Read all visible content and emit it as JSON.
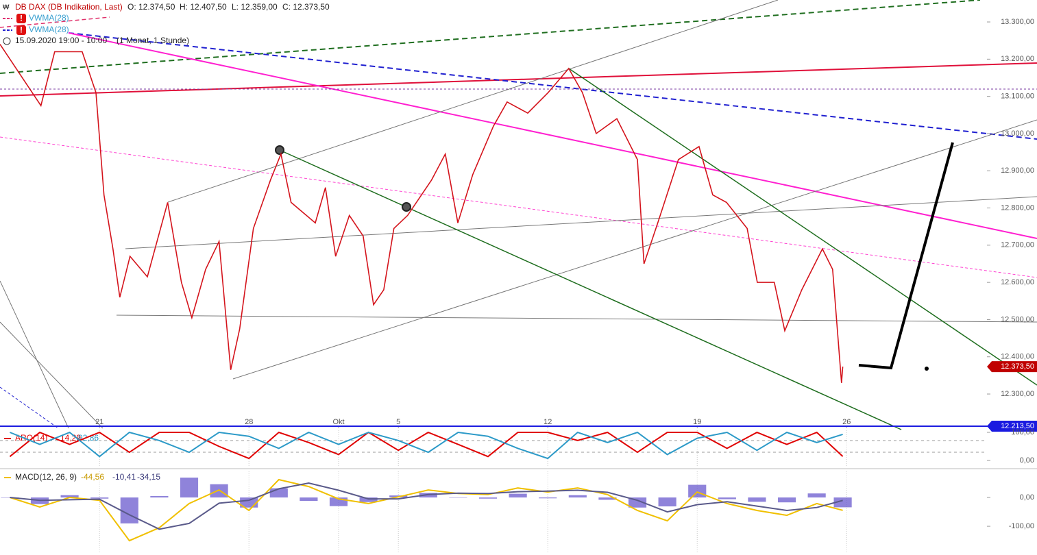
{
  "chart_data": [
    {
      "type": "line",
      "title": "DB DAX (DB Indikation, Last)",
      "ohlc": {
        "open": {
          "value": 12374.5,
          "label": "O: 12.374,50"
        },
        "high": {
          "value": 12407.5,
          "label": "H: 12.407,50"
        },
        "low": {
          "value": 12359,
          "label": "L: 12.359,00"
        },
        "close": {
          "value": 12373.5,
          "label": "C: 12.373,50"
        }
      },
      "indicators": [
        "VWMA(28)",
        "VWMA(28)"
      ],
      "period": "15.09.2020 19:00 - 10:00",
      "interval": "(1 Monat, 1 Stunde)",
      "x": [
        0.67,
        2.04,
        2.5,
        3.42,
        3.88,
        4.15,
        4.45,
        4.68,
        5.02,
        5.6,
        6.28,
        6.74,
        7.09,
        7.55,
        8.0,
        8.39,
        8.69,
        9.15,
        9.72,
        10.07,
        10.41,
        11.22,
        11.56,
        11.9,
        12.36,
        12.82,
        13.17,
        13.51,
        13.85,
        14.31,
        15.11,
        15.57,
        15.99,
        16.49,
        17.18,
        17.64,
        18.33,
        19.01,
        19.7,
        20.16,
        20.62,
        21.31,
        22.0,
        22.22,
        22.68,
        23.37,
        24.06,
        24.52,
        24.98,
        25.67,
        26.01,
        26.58,
        26.93,
        27.5,
        28.19,
        28.53,
        28.83,
        28.87
      ],
      "values": [
        13240,
        13075,
        13220,
        13220,
        13110,
        12835,
        12690,
        12560,
        12670,
        12615,
        12815,
        12600,
        12505,
        12635,
        12710,
        12365,
        12475,
        12745,
        12875,
        12945,
        12815,
        12760,
        12855,
        12670,
        12780,
        12725,
        12540,
        12580,
        12745,
        12780,
        12875,
        12945,
        12760,
        12890,
        13020,
        13085,
        13055,
        13110,
        13175,
        13110,
        13000,
        13040,
        12930,
        12650,
        12760,
        12930,
        12965,
        12835,
        12815,
        12745,
        12600,
        12600,
        12470,
        12580,
        12690,
        12635,
        12330,
        12373.5
      ],
      "color": "#d4141c",
      "xlim": [
        0.67,
        35.37
      ],
      "ylim": [
        12208,
        13359
      ],
      "xticks": [
        {
          "value": 4,
          "label": "21"
        },
        {
          "value": 9,
          "label": "28"
        },
        {
          "value": 12,
          "label": "Okt"
        },
        {
          "value": 14,
          "label": "5"
        },
        {
          "value": 19,
          "label": "12"
        },
        {
          "value": 24,
          "label": "19"
        },
        {
          "value": 29,
          "label": "26"
        }
      ],
      "yticks": [
        {
          "value": 13300,
          "label": "13.300,00"
        },
        {
          "value": 13200,
          "label": "13.200,00"
        },
        {
          "value": 13100,
          "label": "13.100,00"
        },
        {
          "value": 13000,
          "label": "13.000,00"
        },
        {
          "value": 12900,
          "label": "12.900,00"
        },
        {
          "value": 12800,
          "label": "12.800,00"
        },
        {
          "value": 12700,
          "label": "12.700,00"
        },
        {
          "value": 12600,
          "label": "12.600,00"
        },
        {
          "value": 12500,
          "label": "12.500,00"
        },
        {
          "value": 12400,
          "label": "12.400,00"
        },
        {
          "value": 12300,
          "label": "12.300,00"
        }
      ],
      "price_labels": [
        {
          "value": 12373.5,
          "label": "12.373,50",
          "color": "#c00000"
        },
        {
          "value": 12213.5,
          "label": "12.213,50",
          "color": "#1a1ae0"
        }
      ]
    },
    {
      "type": "line",
      "title": "ARO(14)",
      "x": [
        1,
        2,
        3,
        4,
        5,
        6,
        7,
        8,
        9,
        10,
        11,
        12,
        13,
        14,
        15,
        16,
        17,
        18,
        19,
        20,
        21,
        22,
        23,
        24,
        25,
        26,
        27,
        28,
        28.87
      ],
      "series": [
        {
          "color": "#e00000",
          "values": [
            14,
            100,
            57,
            100,
            29,
            100,
            100,
            50,
            7,
            100,
            64,
            21,
            100,
            36,
            100,
            57,
            14,
            100,
            100,
            71,
            100,
            29,
            100,
            100,
            43,
            100,
            57,
            100,
            14.29
          ],
          "value_label": "14,29"
        },
        {
          "color": "#2c9ac8",
          "values": [
            100,
            57,
            100,
            14,
            100,
            71,
            29,
            100,
            86,
            43,
            100,
            57,
            100,
            71,
            29,
            100,
            86,
            43,
            7,
            100,
            64,
            100,
            21,
            79,
            100,
            36,
            100,
            64,
            92.86
          ],
          "value_label": "92,86"
        }
      ],
      "xlim": [
        0.67,
        35.37
      ],
      "ylim": [
        -24.4,
        107.3
      ],
      "yticks": [
        {
          "value": 100,
          "label": "100,00"
        },
        {
          "value": 0,
          "label": "0,00"
        }
      ]
    },
    {
      "type": "line",
      "title": "MACD(12, 26, 9)",
      "x": [
        1,
        2,
        3,
        4,
        5,
        6,
        7,
        8,
        9,
        10,
        11,
        12,
        13,
        14,
        15,
        16,
        17,
        18,
        19,
        20,
        21,
        22,
        23,
        24,
        25,
        26,
        27,
        28,
        28.87
      ],
      "series": [
        {
          "color": "#f0c000",
          "values": [
            0,
            -33,
            0,
            -10,
            -150,
            -105,
            -21,
            26,
            -45,
            62,
            38,
            -5,
            -21,
            2,
            26,
            14,
            10,
            33,
            19,
            33,
            10,
            -45,
            -81,
            19,
            -21,
            -45,
            -62,
            -21,
            -44.56
          ],
          "value_label": "-44,56"
        },
        {
          "color": "#5a5a8a",
          "values": [
            0,
            -10,
            -8,
            -6,
            -60,
            -110,
            -90,
            -20,
            -10,
            30,
            50,
            25,
            -5,
            -5,
            10,
            15,
            14,
            20,
            22,
            25,
            18,
            -10,
            -50,
            -25,
            -15,
            -30,
            -45,
            -35,
            -10.41
          ],
          "value_label": "-10,41"
        }
      ],
      "histogram": {
        "color": "#6a5acd",
        "values": [
          0,
          -23,
          8,
          -4,
          -90,
          5,
          69,
          46,
          -35,
          32,
          -12,
          -30,
          -16,
          7,
          16,
          -1,
          -4,
          13,
          -3,
          8,
          -8,
          -35,
          -31,
          44,
          -6,
          -15,
          -17,
          14,
          -34.15
        ],
        "value_label": "-34,15"
      },
      "xlim": [
        0.67,
        35.37
      ],
      "ylim": [
        -195,
        90.5
      ],
      "yticks": [
        {
          "value": 0,
          "label": "0,00"
        },
        {
          "value": -100,
          "label": "-100,00"
        }
      ]
    }
  ]
}
